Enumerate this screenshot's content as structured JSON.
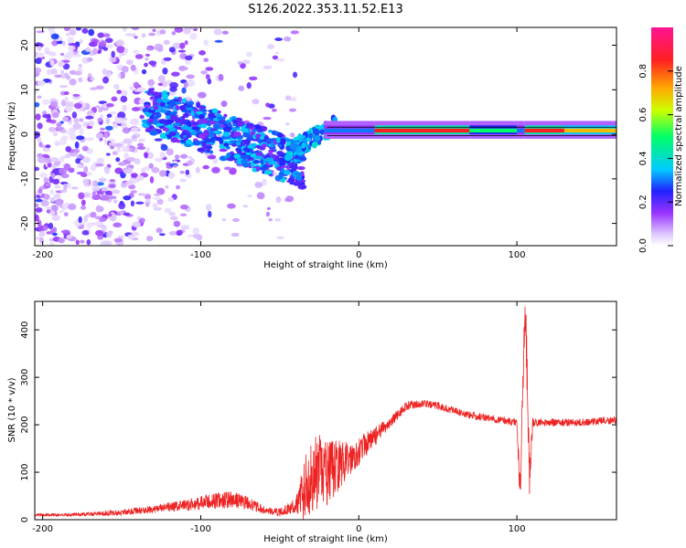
{
  "title": "S126.2022.353.11.52.E13",
  "chart_data": [
    {
      "type": "heatmap",
      "xlabel": "Height of straight line (km)",
      "ylabel": "Frequency (Hz)",
      "xlim": [
        -205,
        163
      ],
      "ylim": [
        -25,
        24
      ],
      "xticks": [
        -200,
        -100,
        0,
        100
      ],
      "yticks": [
        -20,
        -10,
        0,
        10,
        20
      ],
      "colorbar": {
        "label": "Normalized spectral amplitude",
        "range": [
          0.0,
          1.0
        ],
        "ticks": [
          0.0,
          0.2,
          0.4,
          0.6,
          0.8
        ],
        "colors": [
          "#ffffff",
          "#c9a6ff",
          "#7f1fff",
          "#1f1fff",
          "#00ccff",
          "#00ff66",
          "#ccff00",
          "#ffaa00",
          "#ff2020",
          "#ff1493"
        ]
      },
      "regions": [
        {
          "x_range": [
            -205,
            -60
          ],
          "y_range": [
            -25,
            24
          ],
          "amplitude": 0.15,
          "pattern": "scattered noise"
        },
        {
          "x_range": [
            -130,
            -40
          ],
          "y_range": [
            -8,
            8
          ],
          "amplitude": 0.35,
          "pattern": "descending band"
        },
        {
          "x_range": [
            -20,
            163
          ],
          "y_range": [
            -1,
            3
          ],
          "amplitude": 0.9,
          "pattern": "narrow line near 1 Hz"
        }
      ],
      "colors": {
        "line": "#ff3030"
      }
    },
    {
      "type": "line",
      "xlabel": "Height of straight line (km)",
      "ylabel": "SNR (10 * v/v)",
      "xlim": [
        -205,
        163
      ],
      "ylim": [
        0,
        460
      ],
      "xticks": [
        -200,
        -100,
        0,
        100
      ],
      "yticks": [
        0,
        100,
        200,
        300,
        400
      ],
      "series": [
        {
          "color": "#ee2222",
          "x": [
            -205,
            -190,
            -170,
            -150,
            -130,
            -110,
            -100,
            -90,
            -80,
            -70,
            -60,
            -50,
            -40,
            -35,
            -30,
            -25,
            -20,
            -15,
            -10,
            -5,
            0,
            5,
            10,
            20,
            30,
            40,
            50,
            60,
            70,
            80,
            90,
            100,
            102,
            104,
            105,
            106,
            108,
            110,
            120,
            140,
            163
          ],
          "values": [
            10,
            10,
            12,
            15,
            22,
            30,
            35,
            40,
            42,
            35,
            20,
            15,
            30,
            60,
            90,
            100,
            95,
            110,
            120,
            130,
            145,
            160,
            175,
            205,
            240,
            245,
            240,
            230,
            220,
            215,
            210,
            205,
            60,
            300,
            440,
            380,
            80,
            205,
            205,
            205,
            210
          ],
          "noise": [
            3,
            3,
            4,
            6,
            8,
            12,
            15,
            18,
            18,
            14,
            8,
            8,
            15,
            70,
            80,
            80,
            70,
            60,
            45,
            35,
            30,
            25,
            20,
            12,
            10,
            8,
            8,
            8,
            8,
            8,
            8,
            8,
            40,
            60,
            30,
            60,
            40,
            10,
            8,
            8,
            8
          ]
        }
      ]
    }
  ]
}
